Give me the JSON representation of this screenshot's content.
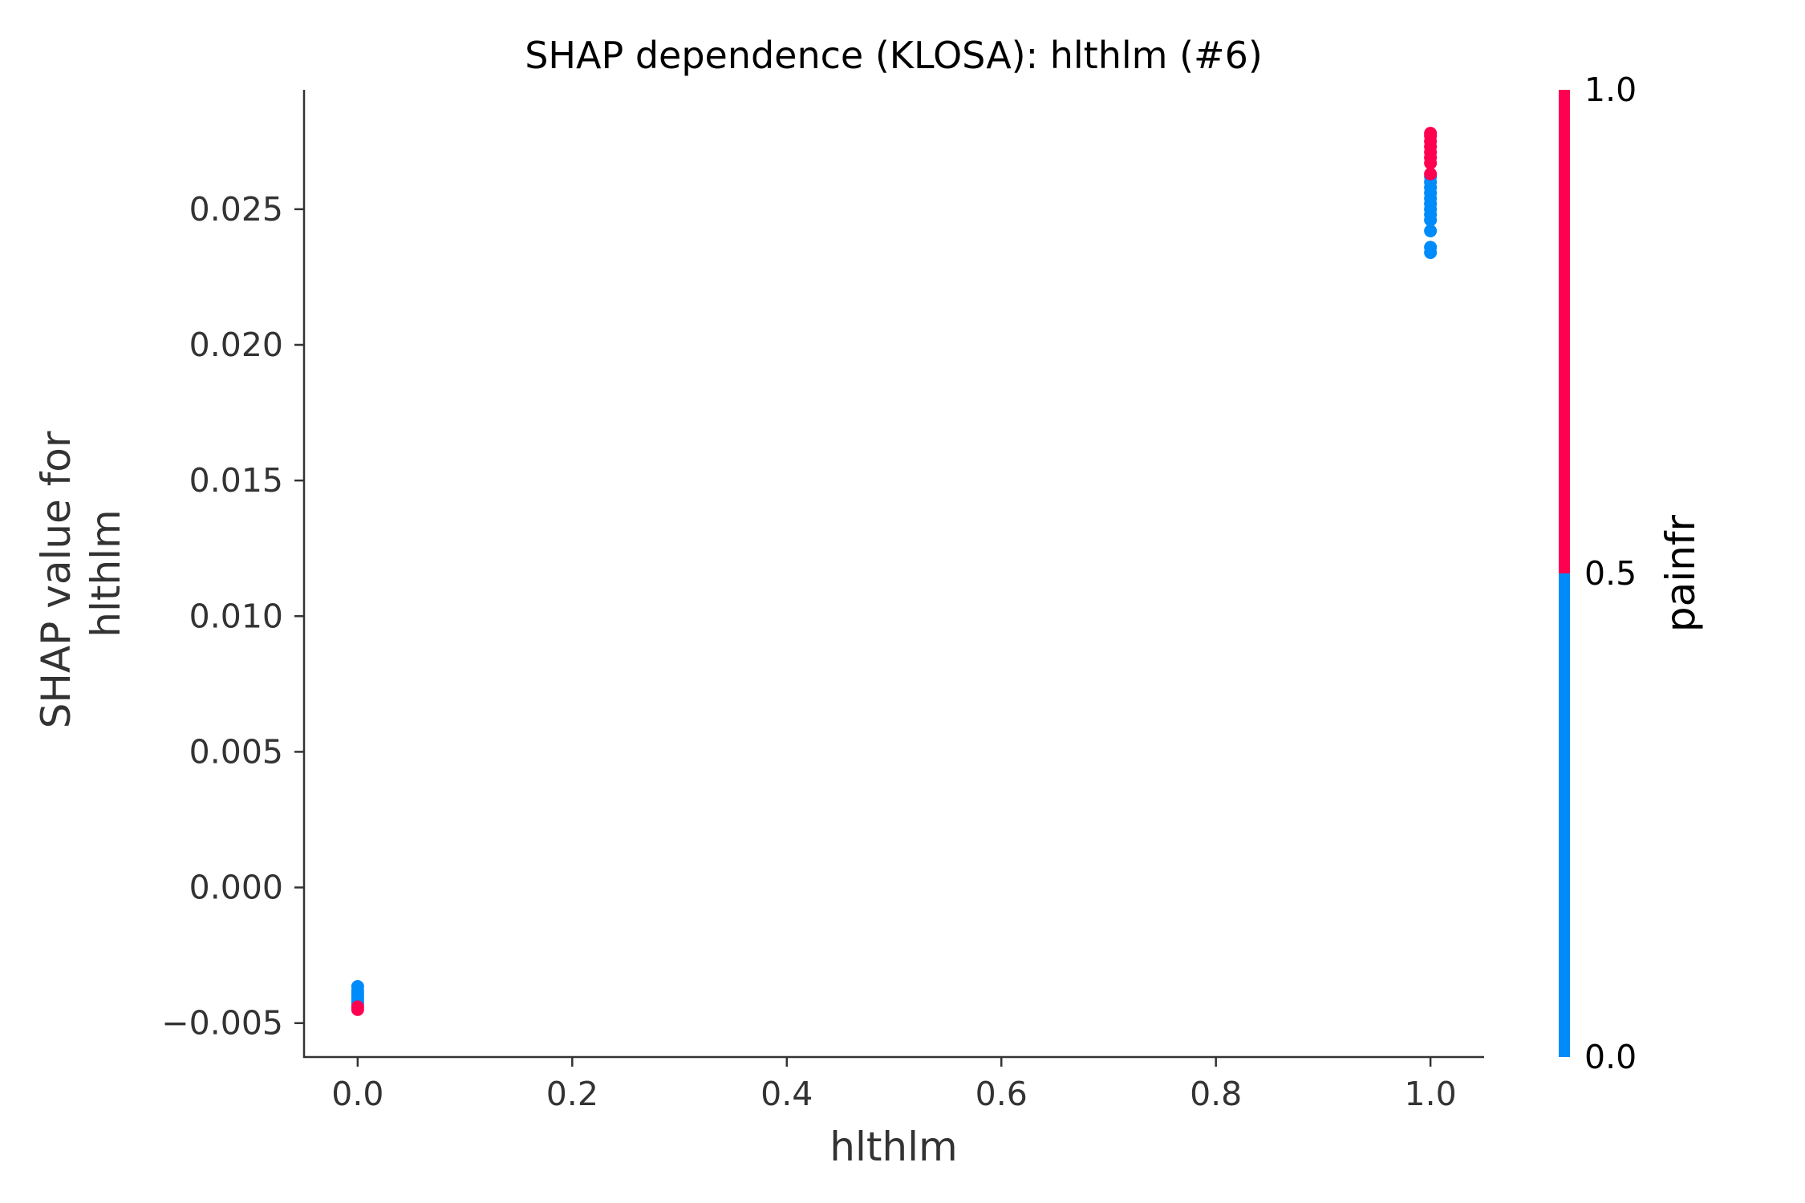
{
  "chart_data": {
    "type": "scatter",
    "title": "SHAP dependence (KLOSA): hlthlm (#6)",
    "xlabel": "hlthlm",
    "ylabel_lines": [
      "SHAP value for",
      "hlthlm"
    ],
    "xlim": [
      -0.05,
      1.05
    ],
    "ylim": [
      -0.00625,
      0.0294
    ],
    "x_ticks": [
      0.0,
      0.2,
      0.4,
      0.6,
      0.8,
      1.0
    ],
    "x_tick_labels": [
      "0.0",
      "0.2",
      "0.4",
      "0.6",
      "0.8",
      "1.0"
    ],
    "y_ticks": [
      -0.005,
      0.0,
      0.005,
      0.01,
      0.015,
      0.02,
      0.025
    ],
    "y_tick_labels": [
      "−0.005",
      "0.000",
      "0.005",
      "0.010",
      "0.015",
      "0.020",
      "0.025"
    ],
    "grid": false,
    "colorbar": {
      "label": "painfr",
      "range": [
        0.0,
        1.0
      ],
      "ticks": [
        0.0,
        0.5,
        1.0
      ],
      "tick_labels": [
        "0.0",
        "0.5",
        "1.0"
      ],
      "low_color": "#008bfb",
      "high_color": "#ff0051"
    },
    "series": [
      {
        "color_value": 0,
        "color": "#008bfb",
        "points": [
          [
            0.0,
            -0.00365
          ],
          [
            0.0,
            -0.0038
          ],
          [
            0.0,
            -0.0039
          ],
          [
            0.0,
            -0.004
          ],
          [
            0.0,
            -0.0041
          ],
          [
            0.0,
            -0.0042
          ],
          [
            0.0,
            -0.0043
          ],
          [
            1.0,
            0.0234
          ],
          [
            1.0,
            0.0236
          ],
          [
            1.0,
            0.0242
          ],
          [
            1.0,
            0.0246
          ],
          [
            1.0,
            0.0248
          ],
          [
            1.0,
            0.025
          ],
          [
            1.0,
            0.0252
          ],
          [
            1.0,
            0.0254
          ],
          [
            1.0,
            0.0256
          ],
          [
            1.0,
            0.0258
          ],
          [
            1.0,
            0.026
          ],
          [
            1.0,
            0.0262
          ]
        ]
      },
      {
        "color_value": 1,
        "color": "#ff0051",
        "points": [
          [
            0.0,
            -0.0044
          ],
          [
            0.0,
            -0.0045
          ],
          [
            1.0,
            0.0263
          ],
          [
            1.0,
            0.0267
          ],
          [
            1.0,
            0.0269
          ],
          [
            1.0,
            0.0271
          ],
          [
            1.0,
            0.0273
          ],
          [
            1.0,
            0.0275
          ],
          [
            1.0,
            0.0277
          ],
          [
            1.0,
            0.0278
          ]
        ]
      }
    ]
  }
}
